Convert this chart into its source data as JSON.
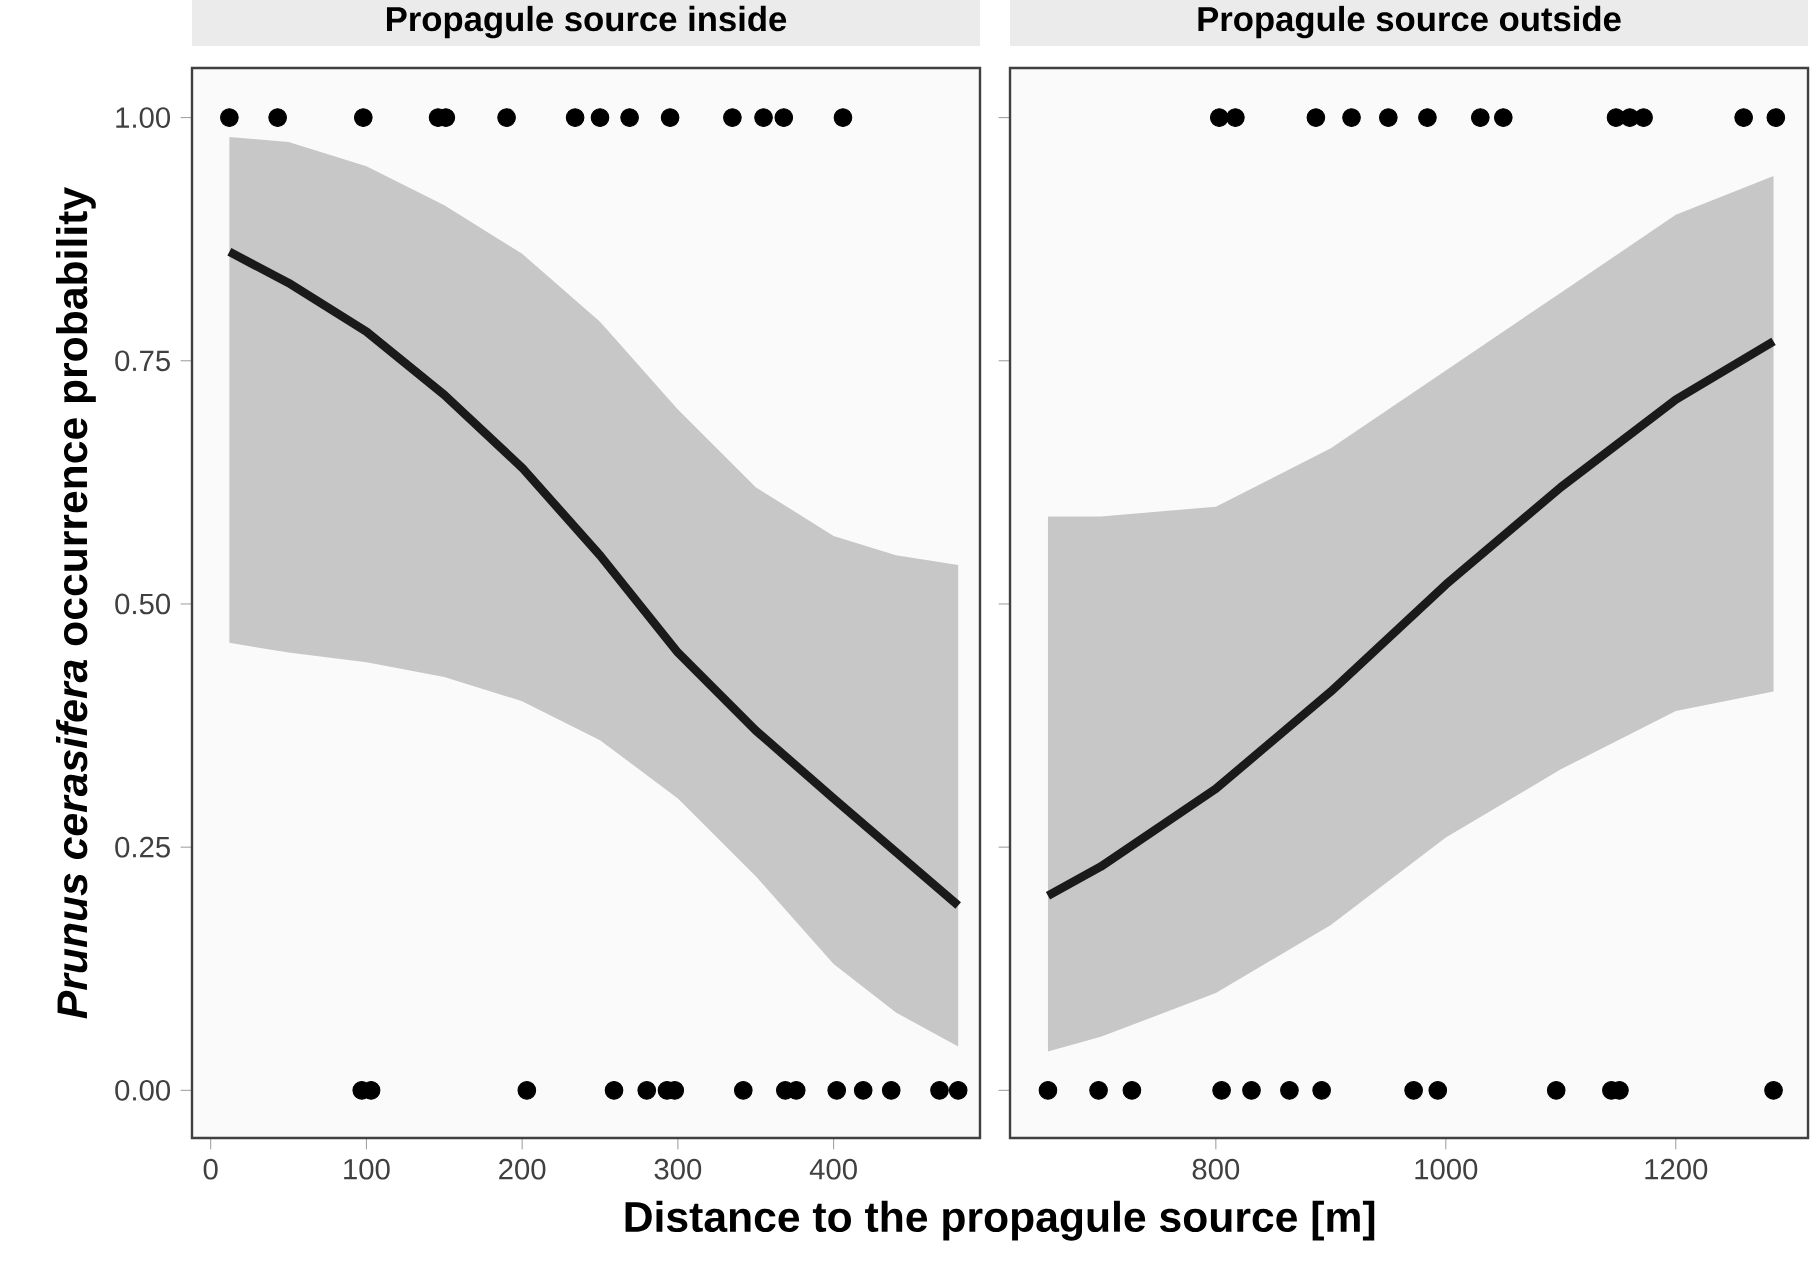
{
  "chart_data": [
    {
      "type": "scatter",
      "title": "Propagule source inside",
      "xlabel": "Distance to the propagule source [m]",
      "ylabel": "*Prunus cerasifera* occurrence probability",
      "xlim": [
        -12,
        494
      ],
      "ylim": [
        -0.049,
        1.051
      ],
      "xticks": [
        0,
        100,
        200,
        300,
        400
      ],
      "yticks": [
        {
          "value": 0,
          "label": "0.00"
        },
        {
          "value": 0.25,
          "label": "0.25"
        },
        {
          "value": 0.5,
          "label": "0.50"
        },
        {
          "value": 0.75,
          "label": "0.75"
        },
        {
          "value": 1,
          "label": "1.00"
        }
      ],
      "grid": false,
      "series": [
        {
          "type": "line",
          "color": "#1a1a1a",
          "x": [
            12,
            50,
            100,
            150,
            200,
            250,
            300,
            350,
            400,
            440,
            480
          ],
          "values": [
            0.862,
            0.83,
            0.78,
            0.715,
            0.64,
            0.55,
            0.45,
            0.37,
            0.3,
            0.245,
            0.19
          ],
          "lower": [
            0.46,
            0.45,
            0.44,
            0.425,
            0.4,
            0.36,
            0.3,
            0.22,
            0.13,
            0.08,
            0.045
          ],
          "upper": [
            0.98,
            0.975,
            0.95,
            0.91,
            0.86,
            0.79,
            0.7,
            0.62,
            0.57,
            0.55,
            0.54
          ]
        },
        {
          "color": "#000000",
          "x": [
            12,
            43,
            98,
            146,
            151,
            190,
            234,
            250,
            269,
            295,
            335,
            355,
            368,
            406,
            97,
            103,
            203,
            259,
            280,
            293,
            298,
            342,
            369,
            376,
            402,
            419,
            437,
            468,
            480
          ],
          "values": [
            1,
            1,
            1,
            1,
            1,
            1,
            1,
            1,
            1,
            1,
            1,
            1,
            1,
            1,
            0,
            0,
            0,
            0,
            0,
            0,
            0,
            0,
            0,
            0,
            0,
            0,
            0,
            0,
            0
          ]
        }
      ]
    },
    {
      "type": "scatter",
      "title": "Propagule source outside",
      "xlim": [
        621,
        1315
      ],
      "ylim": [
        -0.049,
        1.051
      ],
      "xticks": [
        800,
        1000,
        1200
      ],
      "yticks": [
        {
          "value": 0,
          "label": null
        },
        {
          "value": 0.25,
          "label": null
        },
        {
          "value": 0.5,
          "label": null
        },
        {
          "value": 0.75,
          "label": null
        },
        {
          "value": 1,
          "label": null
        }
      ],
      "tick_labels": "x",
      "grid": false,
      "series": [
        {
          "type": "line",
          "color": "#1a1a1a",
          "x": [
            654,
            700,
            800,
            900,
            1000,
            1100,
            1200,
            1285
          ],
          "values": [
            0.2,
            0.23,
            0.31,
            0.41,
            0.52,
            0.62,
            0.71,
            0.77
          ],
          "lower": [
            0.04,
            0.055,
            0.1,
            0.17,
            0.26,
            0.33,
            0.39,
            0.41
          ],
          "upper": [
            0.59,
            0.59,
            0.6,
            0.66,
            0.74,
            0.82,
            0.9,
            0.94
          ]
        },
        {
          "color": "#000000",
          "x": [
            803,
            817,
            887,
            918,
            950,
            984,
            1030,
            1050,
            1148,
            1160,
            1172,
            1259,
            1287,
            654,
            698,
            727,
            805,
            831,
            864,
            892,
            972,
            993,
            1096,
            1144,
            1151,
            1285
          ],
          "values": [
            1,
            1,
            1,
            1,
            1,
            1,
            1,
            1,
            1,
            1,
            1,
            1,
            1,
            0,
            0,
            0,
            0,
            0,
            0,
            0,
            0,
            0,
            0,
            0,
            0,
            0
          ]
        }
      ]
    }
  ]
}
